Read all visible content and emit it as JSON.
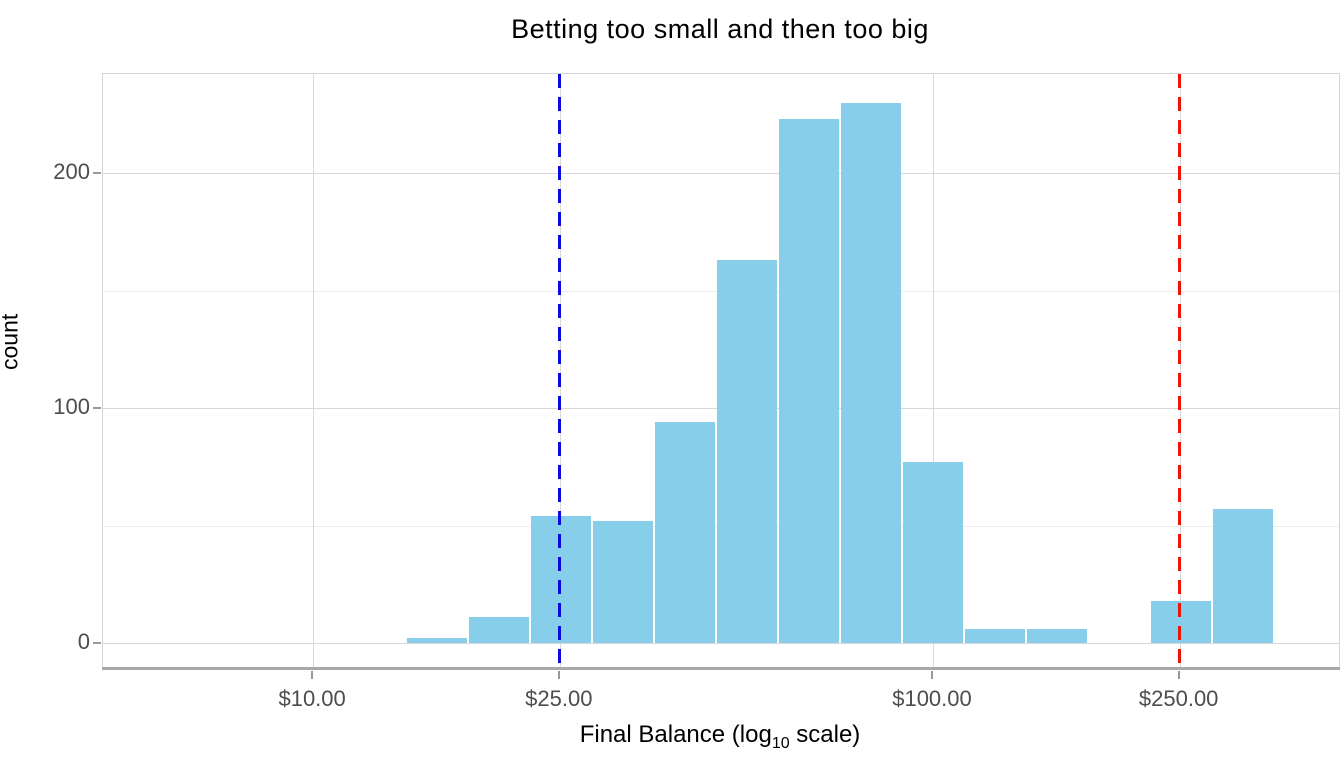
{
  "figure": {
    "kind": "ggplot-style histogram",
    "background": "#ffffff"
  },
  "title": "Betting too small and then too big",
  "y_axis_title": "count",
  "x_axis_title": {
    "part1": "Final Balance (log",
    "subscript": "10",
    "part2": " scale)"
  },
  "chart_data": {
    "type": "bar",
    "subtype": "histogram",
    "title": "Betting too small and then too big",
    "xlabel": "Final Balance (log10 scale)",
    "ylabel": "count",
    "x_scale": "log10",
    "xlim_log10": [
      0.661,
      2.655
    ],
    "ylim": [
      -11,
      242.2
    ],
    "grid": "on",
    "legend": "none",
    "bar_fill": "#87CEEB",
    "bin_log10_edges": [
      1.15,
      1.25,
      1.35,
      1.45,
      1.55,
      1.65,
      1.75,
      1.85,
      1.95,
      2.05,
      2.15,
      2.25,
      2.35,
      2.45,
      2.55
    ],
    "bin_dollar_edges": [
      14.1,
      17.8,
      22.4,
      28.2,
      35.5,
      44.7,
      56.2,
      70.8,
      89.1,
      112.2,
      141.3,
      177.8,
      223.9,
      281.8,
      354.8
    ],
    "counts": [
      2,
      11,
      54,
      52,
      94,
      163,
      223,
      230,
      77,
      6,
      6,
      0,
      18,
      57
    ],
    "x_ticks": [
      {
        "label": "$10.00",
        "log10": 1.0
      },
      {
        "label": "$25.00",
        "log10": 1.39794
      },
      {
        "label": "$100.00",
        "log10": 2.0
      },
      {
        "label": "$250.00",
        "log10": 2.39794
      }
    ],
    "y_ticks": [
      {
        "label": "0",
        "value": 0
      },
      {
        "label": "100",
        "value": 100
      },
      {
        "label": "200",
        "value": 200
      }
    ],
    "y_minor": [
      50,
      150
    ],
    "vlines": [
      {
        "name": "blue-dashed-vline",
        "dollar_value": 25,
        "log10": 1.39794,
        "color": "#0b0bdf",
        "style": "dashed"
      },
      {
        "name": "red-dashed-vline",
        "dollar_value": 250,
        "log10": 2.39794,
        "color": "#ee1406",
        "style": "dashed"
      }
    ],
    "colors": {
      "bar_fill": "#87CEEB",
      "grid_major": "#d9d9d9",
      "grid_minor": "#ececec",
      "axis_line": "#a9a9a9",
      "tick_mark": "#999999",
      "tick_text": "#4d4d4d",
      "title_text": "#000000"
    }
  }
}
